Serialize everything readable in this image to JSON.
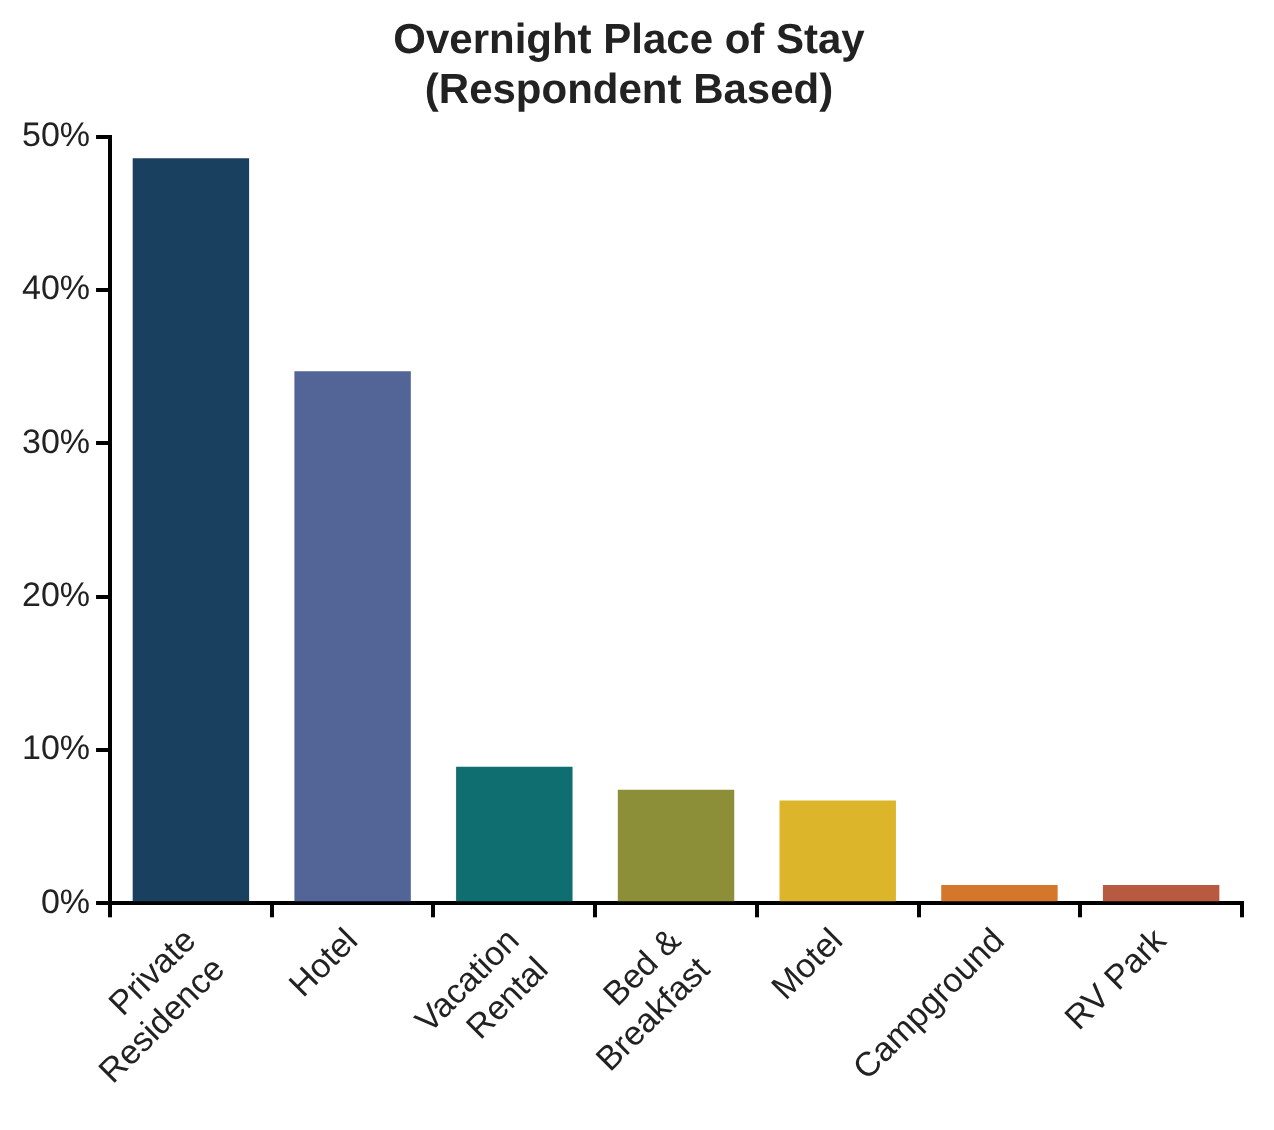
{
  "chart_data": {
    "type": "bar",
    "title": "Overnight Place of Stay\n(Respondent Based)",
    "categories": [
      "Private Residence",
      "Hotel",
      "Vacation Rental",
      "Bed & Breakfast",
      "Motel",
      "Campground",
      "RV Park"
    ],
    "values": [
      48.6,
      34.7,
      8.9,
      7.4,
      6.7,
      1.2,
      1.2
    ],
    "colors": [
      "#1a4060",
      "#536497",
      "#0f6e70",
      "#8c8f38",
      "#dcb52a",
      "#d4772a",
      "#b85a40"
    ],
    "ylim": [
      0,
      50
    ],
    "yticks": [
      {
        "value": 0,
        "label": "0%"
      },
      {
        "value": 10,
        "label": "10%"
      },
      {
        "value": 20,
        "label": "20%"
      },
      {
        "value": 30,
        "label": "30%"
      },
      {
        "value": 40,
        "label": "40%"
      },
      {
        "value": 50,
        "label": "50%"
      }
    ],
    "grid": false,
    "legend": false
  }
}
